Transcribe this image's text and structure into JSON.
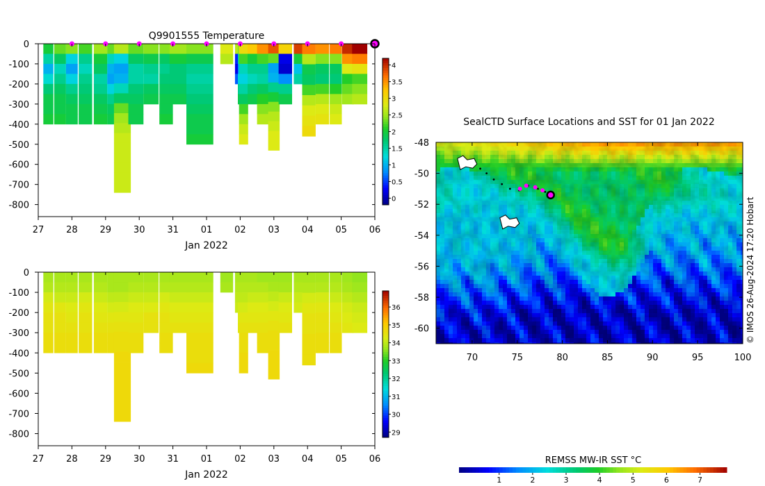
{
  "chart_data": [
    {
      "type": "heatmap",
      "title": "Q9901555  Temperature",
      "xlabel": "Jan 2022",
      "ylabel": "",
      "xticks": [
        "27",
        "28",
        "29",
        "30",
        "31",
        "01",
        "02",
        "03",
        "04",
        "05",
        "06"
      ],
      "yticks": [
        "0",
        "-100",
        "-200",
        "-300",
        "-400",
        "-500",
        "-600",
        "-700",
        "-800"
      ],
      "ylim": [
        -860,
        0
      ],
      "colorbar": {
        "min": -0.2,
        "max": 4.2,
        "ticks": [
          "0",
          "0.5",
          "1",
          "1.5",
          "2",
          "2.5",
          "3",
          "3.5",
          "4"
        ],
        "tick_values": [
          0,
          0.5,
          1,
          1.5,
          2,
          2.5,
          3,
          3.5,
          4
        ]
      },
      "surface_marker_days": [
        28,
        29,
        30,
        31,
        32,
        33,
        34,
        35,
        36
      ],
      "latest_marker_day": 37,
      "profiles": [
        {
          "t": 27.3,
          "w": 0.3,
          "depth": 400,
          "vals": [
            2.0,
            1.5,
            1.0,
            1.3,
            1.7,
            1.9,
            1.9,
            2.0
          ]
        },
        {
          "t": 27.65,
          "w": 0.35,
          "depth": 400,
          "vals": [
            2.3,
            1.8,
            1.4,
            1.6,
            1.8,
            1.9,
            1.9,
            2.0
          ]
        },
        {
          "t": 28.0,
          "w": 0.35,
          "depth": 400,
          "vals": [
            2.4,
            1.2,
            0.9,
            1.2,
            1.6,
            1.8,
            1.9,
            1.9
          ]
        },
        {
          "t": 28.4,
          "w": 0.4,
          "depth": 400,
          "vals": [
            2.2,
            1.6,
            1.4,
            1.6,
            1.7,
            1.8,
            1.9,
            1.9
          ]
        },
        {
          "t": 28.85,
          "w": 0.4,
          "depth": 400,
          "vals": [
            2.5,
            2.0,
            1.8,
            1.5,
            1.6,
            1.8,
            1.9,
            2.0
          ]
        },
        {
          "t": 29.3,
          "w": 0.5,
          "depth": 400,
          "vals": [
            2.3,
            1.4,
            1.0,
            0.9,
            1.2,
            1.6,
            1.8,
            1.9
          ]
        },
        {
          "t": 29.5,
          "w": 0.5,
          "depth": 740,
          "vals": [
            2.6,
            1.2,
            0.9,
            1.0,
            1.4,
            1.8,
            2.3,
            2.5,
            2.6,
            2.7,
            2.7,
            2.7,
            2.7,
            2.7,
            2.7
          ]
        },
        {
          "t": 29.9,
          "w": 0.45,
          "depth": 400,
          "vals": [
            2.3,
            1.8,
            1.5,
            1.5,
            1.7,
            1.8,
            1.9,
            1.9
          ]
        },
        {
          "t": 30.35,
          "w": 0.45,
          "depth": 300,
          "vals": [
            2.4,
            1.9,
            1.6,
            1.5,
            1.8,
            1.9
          ]
        },
        {
          "t": 30.8,
          "w": 0.4,
          "depth": 400,
          "vals": [
            2.4,
            1.8,
            1.6,
            1.7,
            1.8,
            1.9,
            1.9,
            2.0
          ]
        },
        {
          "t": 31.2,
          "w": 0.6,
          "depth": 300,
          "vals": [
            2.5,
            2.0,
            1.7,
            1.7,
            1.8,
            1.9
          ]
        },
        {
          "t": 31.8,
          "w": 0.8,
          "depth": 500,
          "vals": [
            2.4,
            1.9,
            1.6,
            1.5,
            1.6,
            1.7,
            1.8,
            1.9,
            1.9,
            2.0
          ]
        },
        {
          "t": 32.6,
          "w": 0.38,
          "depth": 100,
          "vals": [
            2.8,
            2.6
          ]
        },
        {
          "t": 32.93,
          "w": 0.17,
          "depth": 200,
          "vals": [
            2.6,
            0.4,
            0.2,
            0.6
          ]
        },
        {
          "t": 32.99,
          "w": 0.12,
          "depth": 300,
          "vals": [
            2.4,
            1.5,
            0.8,
            1.2,
            1.6,
            1.9
          ]
        },
        {
          "t": 33.1,
          "w": 0.27,
          "depth": 500,
          "vals": [
            3.0,
            2.2,
            1.4,
            1.2,
            1.5,
            1.8,
            2.2,
            2.5,
            2.7,
            2.8
          ]
        },
        {
          "t": 33.37,
          "w": 0.3,
          "depth": 300,
          "vals": [
            3.2,
            2.0,
            1.6,
            1.4,
            1.7,
            1.9
          ]
        },
        {
          "t": 33.67,
          "w": 0.34,
          "depth": 400,
          "vals": [
            3.5,
            2.2,
            1.6,
            1.5,
            1.8,
            2.1,
            2.4,
            2.6
          ]
        },
        {
          "t": 34.0,
          "w": 0.34,
          "depth": 530,
          "vals": [
            3.8,
            2.3,
            0.9,
            1.0,
            1.6,
            2.0,
            2.4,
            2.6,
            2.7,
            2.8,
            2.8
          ]
        },
        {
          "t": 34.34,
          "w": 0.4,
          "depth": 300,
          "vals": [
            3.1,
            0.2,
            0.1,
            0.8,
            1.6,
            1.9
          ]
        },
        {
          "t": 34.74,
          "w": 0.3,
          "depth": 200,
          "vals": [
            3.9,
            2.0,
            1.1,
            1.5
          ]
        },
        {
          "t": 35.04,
          "w": 0.4,
          "depth": 460,
          "vals": [
            3.6,
            2.6,
            1.9,
            1.8,
            2.2,
            2.6,
            2.8,
            2.9,
            3.0
          ]
        },
        {
          "t": 35.44,
          "w": 0.4,
          "depth": 400,
          "vals": [
            3.5,
            2.4,
            1.8,
            1.7,
            2.2,
            2.6,
            2.8,
            2.9
          ]
        },
        {
          "t": 35.84,
          "w": 0.36,
          "depth": 400,
          "vals": [
            3.6,
            2.4,
            1.8,
            1.7,
            2.1,
            2.5,
            2.7,
            2.8
          ]
        },
        {
          "t": 36.2,
          "w": 0.35,
          "depth": 300,
          "vals": [
            4.0,
            3.5,
            2.8,
            2.1,
            2.3,
            2.5
          ]
        },
        {
          "t": 36.55,
          "w": 0.45,
          "depth": 300,
          "vals": [
            4.2,
            3.6,
            2.9,
            2.2,
            2.4,
            2.6
          ]
        }
      ]
    },
    {
      "type": "heatmap",
      "title": "",
      "xlabel": "Jan 2022",
      "ylabel": "",
      "xticks": [
        "27",
        "28",
        "29",
        "30",
        "31",
        "01",
        "02",
        "03",
        "04",
        "05",
        "06"
      ],
      "yticks": [
        "0",
        "-100",
        "-200",
        "-300",
        "-400",
        "-500",
        "-600",
        "-700",
        "-800"
      ],
      "ylim": [
        -860,
        0
      ],
      "colorbar": {
        "min": 28.7,
        "max": 36.9,
        "ticks": [
          "29",
          "30",
          "31",
          "32",
          "33",
          "34",
          "35",
          "36"
        ],
        "tick_values": [
          29,
          30,
          31,
          32,
          33,
          34,
          35,
          36
        ]
      },
      "profiles": [
        {
          "t": 27.3,
          "w": 0.3,
          "depth": 400,
          "vals": [
            33.8,
            33.9,
            34.2,
            34.4,
            34.5,
            34.5,
            34.6,
            34.6
          ]
        },
        {
          "t": 27.65,
          "w": 0.35,
          "depth": 400,
          "vals": [
            33.8,
            33.9,
            34.1,
            34.4,
            34.5,
            34.5,
            34.6,
            34.6
          ]
        },
        {
          "t": 28.0,
          "w": 0.35,
          "depth": 400,
          "vals": [
            33.8,
            33.9,
            34.1,
            34.3,
            34.4,
            34.5,
            34.6,
            34.6
          ]
        },
        {
          "t": 28.4,
          "w": 0.4,
          "depth": 400,
          "vals": [
            33.8,
            33.9,
            34.2,
            34.4,
            34.5,
            34.5,
            34.6,
            34.6
          ]
        },
        {
          "t": 28.85,
          "w": 0.4,
          "depth": 400,
          "vals": [
            33.8,
            33.9,
            34.1,
            34.3,
            34.4,
            34.5,
            34.6,
            34.6
          ]
        },
        {
          "t": 29.3,
          "w": 0.5,
          "depth": 400,
          "vals": [
            33.8,
            33.8,
            34.0,
            34.2,
            34.4,
            34.5,
            34.6,
            34.6
          ]
        },
        {
          "t": 29.5,
          "w": 0.5,
          "depth": 740,
          "vals": [
            33.8,
            33.8,
            34.0,
            34.2,
            34.4,
            34.5,
            34.6,
            34.6,
            34.7,
            34.7,
            34.7,
            34.7,
            34.7,
            34.7,
            34.7
          ]
        },
        {
          "t": 29.9,
          "w": 0.45,
          "depth": 400,
          "vals": [
            33.8,
            33.9,
            34.1,
            34.3,
            34.4,
            34.5,
            34.6,
            34.6
          ]
        },
        {
          "t": 30.35,
          "w": 0.45,
          "depth": 300,
          "vals": [
            33.8,
            33.9,
            34.1,
            34.3,
            34.5,
            34.5
          ]
        },
        {
          "t": 30.8,
          "w": 0.4,
          "depth": 400,
          "vals": [
            33.8,
            33.9,
            34.2,
            34.4,
            34.5,
            34.5,
            34.6,
            34.6
          ]
        },
        {
          "t": 31.2,
          "w": 0.6,
          "depth": 300,
          "vals": [
            33.8,
            33.9,
            34.1,
            34.3,
            34.4,
            34.5
          ]
        },
        {
          "t": 31.8,
          "w": 0.8,
          "depth": 500,
          "vals": [
            33.8,
            33.9,
            34.1,
            34.3,
            34.4,
            34.5,
            34.6,
            34.6,
            34.6,
            34.7
          ]
        },
        {
          "t": 32.6,
          "w": 0.38,
          "depth": 100,
          "vals": [
            33.7,
            33.8
          ]
        },
        {
          "t": 32.93,
          "w": 0.17,
          "depth": 200,
          "vals": [
            33.8,
            33.9,
            34.0,
            34.1
          ]
        },
        {
          "t": 32.99,
          "w": 0.12,
          "depth": 300,
          "vals": [
            33.8,
            33.9,
            34.0,
            34.2,
            34.3,
            34.4
          ]
        },
        {
          "t": 33.1,
          "w": 0.27,
          "depth": 500,
          "vals": [
            33.8,
            33.9,
            34.0,
            34.2,
            34.4,
            34.5,
            34.6,
            34.6,
            34.7,
            34.7
          ]
        },
        {
          "t": 33.37,
          "w": 0.3,
          "depth": 300,
          "vals": [
            33.8,
            33.9,
            34.1,
            34.3,
            34.4,
            34.5
          ]
        },
        {
          "t": 33.67,
          "w": 0.34,
          "depth": 400,
          "vals": [
            33.7,
            33.9,
            34.1,
            34.3,
            34.4,
            34.5,
            34.6,
            34.6
          ]
        },
        {
          "t": 34.0,
          "w": 0.34,
          "depth": 530,
          "vals": [
            33.7,
            33.8,
            34.0,
            34.2,
            34.4,
            34.5,
            34.6,
            34.6,
            34.7,
            34.7,
            34.7
          ]
        },
        {
          "t": 34.34,
          "w": 0.4,
          "depth": 300,
          "vals": [
            33.7,
            33.8,
            34.1,
            34.3,
            34.4,
            34.5
          ]
        },
        {
          "t": 34.74,
          "w": 0.3,
          "depth": 200,
          "vals": [
            33.8,
            33.9,
            34.1,
            34.2
          ]
        },
        {
          "t": 35.04,
          "w": 0.4,
          "depth": 460,
          "vals": [
            33.8,
            33.9,
            34.2,
            34.4,
            34.5,
            34.5,
            34.6,
            34.6,
            34.6
          ]
        },
        {
          "t": 35.44,
          "w": 0.4,
          "depth": 400,
          "vals": [
            33.8,
            33.9,
            34.2,
            34.4,
            34.5,
            34.5,
            34.6,
            34.6
          ]
        },
        {
          "t": 35.84,
          "w": 0.36,
          "depth": 400,
          "vals": [
            33.8,
            33.9,
            34.1,
            34.3,
            34.4,
            34.5,
            34.6,
            34.6
          ]
        },
        {
          "t": 36.2,
          "w": 0.35,
          "depth": 300,
          "vals": [
            33.7,
            33.8,
            34.0,
            34.2,
            34.3,
            34.4
          ]
        },
        {
          "t": 36.55,
          "w": 0.45,
          "depth": 300,
          "vals": [
            33.6,
            33.7,
            33.9,
            34.1,
            34.2,
            34.3
          ]
        }
      ]
    },
    {
      "type": "heatmap",
      "title": "SealCTD Surface Locations and SST for 01 Jan 2022",
      "xlabel": "",
      "ylabel": "",
      "xlim": [
        66,
        100
      ],
      "ylim": [
        -61,
        -48
      ],
      "xticks": [
        "70",
        "75",
        "80",
        "85",
        "90",
        "95",
        "100"
      ],
      "xtick_values": [
        70,
        75,
        80,
        85,
        90,
        95,
        100
      ],
      "yticks": [
        "-48",
        "-50",
        "-52",
        "-54",
        "-56",
        "-58",
        "-60"
      ],
      "ytick_values": [
        -48,
        -50,
        -52,
        -54,
        -56,
        -58,
        -60
      ],
      "colorbar_label": "REMSS MW-IR SST °C",
      "colorbar": {
        "min": -0.2,
        "max": 7.8,
        "ticks": [
          "1",
          "2",
          "3",
          "4",
          "5",
          "6",
          "7"
        ],
        "tick_values": [
          1,
          2,
          3,
          4,
          5,
          6,
          7
        ]
      },
      "track_points": [
        [
          70.9,
          -49.7
        ],
        [
          71.6,
          -50.0
        ],
        [
          72.4,
          -50.4
        ],
        [
          73.3,
          -50.7
        ],
        [
          74.2,
          -51.0
        ],
        [
          75.2,
          -51.1
        ],
        [
          76.2,
          -50.8
        ],
        [
          77.3,
          -51.0
        ],
        [
          78.1,
          -51.2
        ]
      ],
      "recent_positions": [
        [
          75.3,
          -51.0
        ],
        [
          76.0,
          -50.8
        ],
        [
          77.0,
          -50.9
        ],
        [
          77.8,
          -51.1
        ]
      ],
      "current_position": [
        78.7,
        -51.4
      ],
      "islands": [
        [
          69.3,
          -49.4
        ],
        [
          73.4,
          -53.0
        ]
      ]
    }
  ],
  "credit": "© IMOS 26-Aug-2024 17:20 Hobart"
}
